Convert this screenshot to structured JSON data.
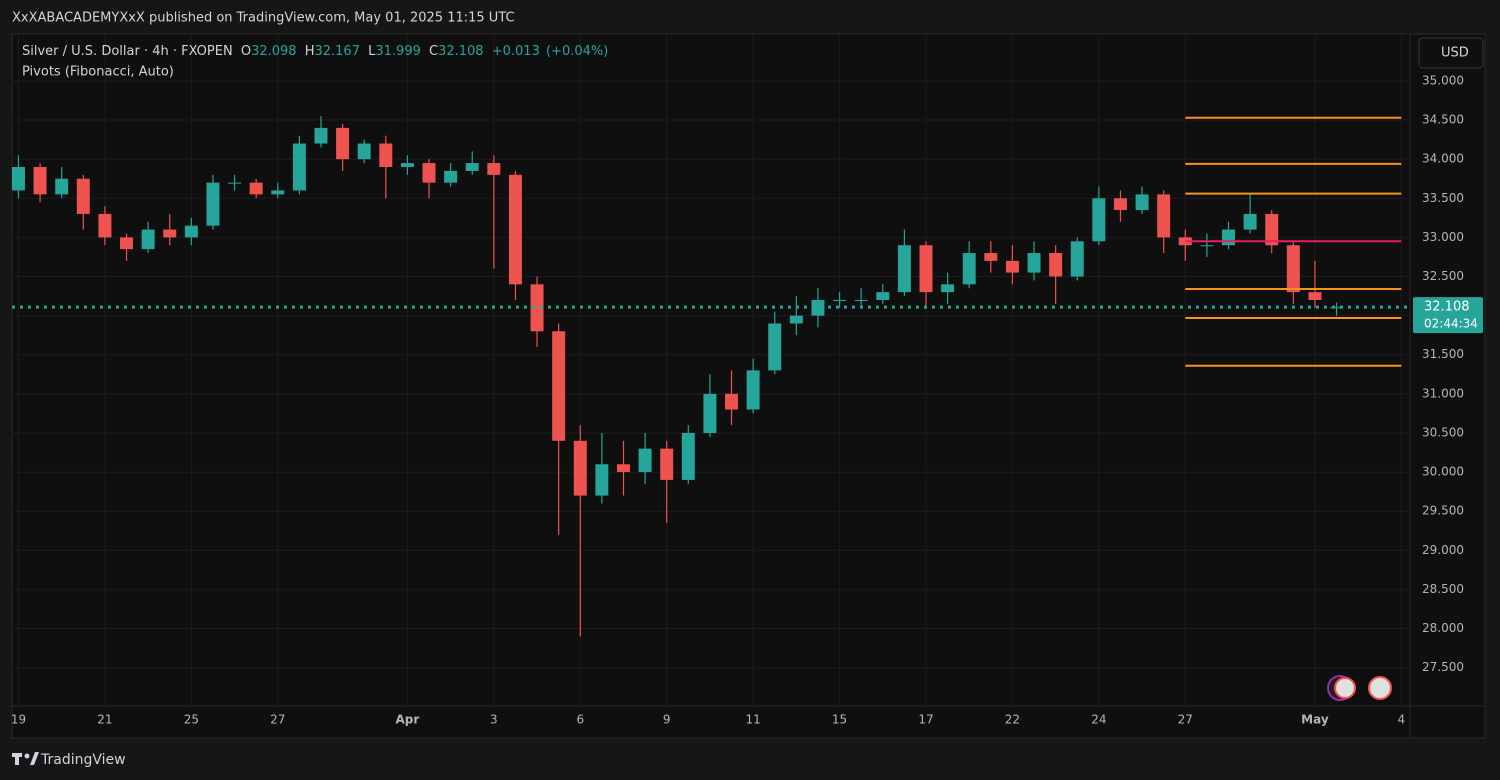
{
  "header": {
    "publisher": "XxXABACADEMYXxX published on TradingView.com, May 01, 2025 11:15 UTC"
  },
  "footer": {
    "brand": "TradingView"
  },
  "chart_data": {
    "type": "candlestick",
    "symbol": "Silver / U.S. Dollar · 4h · FXOPEN",
    "ohlc_labels": [
      "O",
      "H",
      "L",
      "C"
    ],
    "change": "+0.013",
    "change_pct": "(+0.04%)",
    "indicator": "Pivots (Fibonacci, Auto)",
    "currency": "USD",
    "countdown": "02:44:34",
    "up_color": "#26a69a",
    "down_color": "#ef5350",
    "grid": true,
    "xlim": [
      -0.3,
      64.4
    ],
    "ylim": [
      27.01,
      35.6
    ],
    "xticks": [
      {
        "value": 0,
        "label": "19"
      },
      {
        "value": 4,
        "label": "21"
      },
      {
        "value": 8,
        "label": "25"
      },
      {
        "value": 12,
        "label": "27"
      },
      {
        "value": 18,
        "label": "Apr"
      },
      {
        "value": 22,
        "label": "3"
      },
      {
        "value": 26,
        "label": "6"
      },
      {
        "value": 30,
        "label": "9"
      },
      {
        "value": 34,
        "label": "11"
      },
      {
        "value": 38,
        "label": "15"
      },
      {
        "value": 42,
        "label": "17"
      },
      {
        "value": 46,
        "label": "22"
      },
      {
        "value": 50,
        "label": "24"
      },
      {
        "value": 54,
        "label": "27"
      },
      {
        "value": 60,
        "label": "May"
      },
      {
        "value": 64,
        "label": "4"
      }
    ],
    "yticks": [
      {
        "value": 27.5,
        "label": "27.500"
      },
      {
        "value": 28,
        "label": "28.000"
      },
      {
        "value": 28.5,
        "label": "28.500"
      },
      {
        "value": 29,
        "label": "29.000"
      },
      {
        "value": 29.5,
        "label": "29.500"
      },
      {
        "value": 30,
        "label": "30.000"
      },
      {
        "value": 30.5,
        "label": "30.500"
      },
      {
        "value": 31,
        "label": "31.000"
      },
      {
        "value": 31.5,
        "label": "31.500"
      },
      {
        "value": 32,
        "label": "32.000"
      },
      {
        "value": 32.5,
        "label": "32.500"
      },
      {
        "value": 33,
        "label": "33.000"
      },
      {
        "value": 33.5,
        "label": "33.500"
      },
      {
        "value": 34,
        "label": "34.000"
      },
      {
        "value": 34.5,
        "label": "34.500"
      },
      {
        "value": 35,
        "label": "35.000"
      }
    ],
    "open": [
      33.6,
      33.9,
      33.55,
      33.75,
      33.3,
      33.0,
      32.85,
      33.1,
      33.0,
      33.15,
      33.7,
      33.7,
      33.55,
      33.6,
      34.2,
      34.4,
      34.0,
      34.2,
      33.9,
      33.95,
      33.7,
      33.85,
      33.95,
      33.8,
      32.4,
      31.8,
      30.4,
      29.7,
      30.1,
      30.0,
      30.3,
      29.9,
      30.5,
      31.0,
      30.8,
      31.3,
      31.9,
      32.0,
      32.2,
      32.2,
      32.2,
      32.3,
      32.9,
      32.3,
      32.4,
      32.8,
      32.7,
      32.55,
      32.8,
      32.5,
      32.95,
      33.5,
      33.35,
      33.55,
      33.0,
      32.9,
      32.9,
      33.1,
      33.3,
      32.9,
      32.3,
      32.098
    ],
    "high": [
      34.05,
      33.95,
      33.9,
      33.8,
      33.4,
      33.05,
      33.2,
      33.3,
      33.25,
      33.8,
      33.8,
      33.75,
      33.7,
      34.3,
      34.55,
      34.45,
      34.25,
      34.3,
      34.05,
      34.0,
      33.95,
      34.1,
      34.05,
      33.85,
      32.5,
      31.9,
      30.6,
      30.5,
      30.4,
      30.5,
      30.4,
      30.6,
      31.25,
      31.3,
      31.45,
      32.05,
      32.25,
      32.35,
      32.3,
      32.35,
      32.4,
      33.1,
      32.95,
      32.55,
      32.95,
      32.95,
      32.9,
      32.95,
      32.9,
      33.0,
      33.65,
      33.6,
      33.65,
      33.6,
      33.1,
      33.05,
      33.2,
      33.55,
      33.35,
      32.95,
      32.7,
      32.167
    ],
    "low": [
      33.5,
      33.45,
      33.5,
      33.1,
      32.9,
      32.7,
      32.8,
      32.9,
      32.9,
      33.1,
      33.6,
      33.5,
      33.5,
      33.55,
      34.15,
      33.85,
      33.95,
      33.5,
      33.8,
      33.5,
      33.65,
      33.8,
      32.6,
      32.2,
      31.6,
      29.2,
      27.9,
      29.6,
      29.7,
      29.85,
      29.35,
      29.85,
      30.45,
      30.6,
      30.75,
      31.25,
      31.75,
      31.85,
      32.1,
      32.1,
      32.15,
      32.25,
      32.1,
      32.15,
      32.35,
      32.55,
      32.4,
      32.45,
      32.15,
      32.45,
      32.9,
      33.2,
      33.3,
      32.8,
      32.7,
      32.75,
      32.85,
      33.05,
      32.8,
      32.15,
      32.1,
      31.999
    ],
    "close": [
      33.9,
      33.55,
      33.75,
      33.3,
      33.0,
      32.85,
      33.1,
      33.0,
      33.15,
      33.7,
      33.7,
      33.55,
      33.6,
      34.2,
      34.4,
      34.0,
      34.2,
      33.9,
      33.95,
      33.7,
      33.85,
      33.95,
      33.8,
      32.4,
      31.8,
      30.4,
      29.7,
      30.1,
      30.0,
      30.3,
      29.9,
      30.5,
      31.0,
      30.8,
      31.3,
      31.9,
      32.0,
      32.2,
      32.2,
      32.2,
      32.3,
      32.9,
      32.3,
      32.4,
      32.8,
      32.7,
      32.55,
      32.8,
      32.5,
      32.95,
      33.5,
      33.35,
      33.55,
      33.0,
      32.9,
      32.9,
      33.1,
      33.3,
      32.9,
      32.3,
      32.2,
      32.108
    ],
    "pivots": {
      "x_range": [
        54,
        64
      ],
      "levels": [
        {
          "value": 34.53,
          "color": "#f7931e"
        },
        {
          "value": 33.94,
          "color": "#f7931e"
        },
        {
          "value": 33.56,
          "color": "#f7931e"
        },
        {
          "value": 32.95,
          "color": "#e91e63"
        },
        {
          "value": 32.34,
          "color": "#f7931e"
        },
        {
          "value": 31.97,
          "color": "#f7931e"
        },
        {
          "value": 31.36,
          "color": "#f7931e"
        }
      ]
    }
  }
}
